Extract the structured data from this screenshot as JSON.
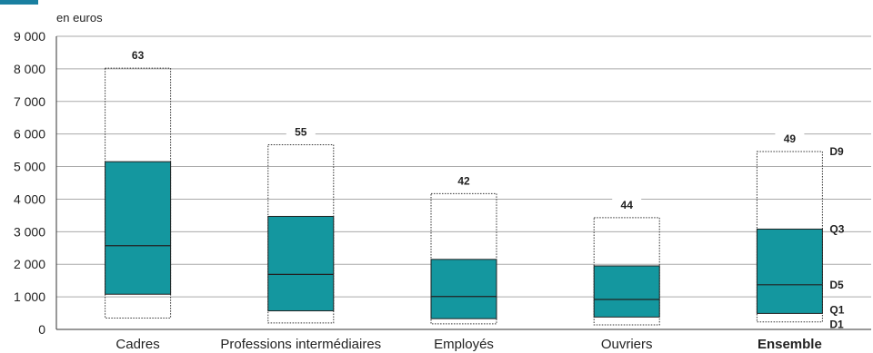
{
  "chart_data": {
    "type": "boxplot",
    "unit_label": "en euros",
    "ylim": [
      0,
      9000
    ],
    "y_ticks": [
      {
        "value": 0,
        "label": "0"
      },
      {
        "value": 1000,
        "label": "1 000"
      },
      {
        "value": 2000,
        "label": "2 000"
      },
      {
        "value": 3000,
        "label": "3 000"
      },
      {
        "value": 4000,
        "label": "4 000"
      },
      {
        "value": 5000,
        "label": "5 000"
      },
      {
        "value": 6000,
        "label": "6 000"
      },
      {
        "value": 7000,
        "label": "7 000"
      },
      {
        "value": 8000,
        "label": "8 000"
      },
      {
        "value": 9000,
        "label": "9 000"
      }
    ],
    "grid": true,
    "colors": {
      "box": "#14979f",
      "grid": "#aaaaaa"
    },
    "categories": [
      {
        "label": "Cadres",
        "d1": 350,
        "q1": 1080,
        "d5": 2570,
        "q3": 5150,
        "d9": 8020,
        "annotation": "63",
        "bold": false
      },
      {
        "label": "Professions intermédiaires",
        "d1": 200,
        "q1": 570,
        "d5": 1690,
        "q3": 3470,
        "d9": 5670,
        "annotation": "55",
        "bold": false
      },
      {
        "label": "Employés",
        "d1": 170,
        "q1": 330,
        "d5": 1010,
        "q3": 2150,
        "d9": 4170,
        "annotation": "42",
        "bold": false
      },
      {
        "label": "Ouvriers",
        "d1": 140,
        "q1": 380,
        "d5": 920,
        "q3": 1950,
        "d9": 3430,
        "annotation": "44",
        "bold": false
      },
      {
        "label": "Ensemble",
        "d1": 230,
        "q1": 490,
        "d5": 1370,
        "q3": 3080,
        "d9": 5460,
        "annotation": "49",
        "bold": true
      }
    ],
    "quantile_labels": [
      {
        "key": "d9",
        "label": "D9"
      },
      {
        "key": "q3",
        "label": "Q3"
      },
      {
        "key": "d5",
        "label": "D5"
      },
      {
        "key": "q1",
        "label": "Q1"
      },
      {
        "key": "d1",
        "label": "D1"
      }
    ]
  }
}
